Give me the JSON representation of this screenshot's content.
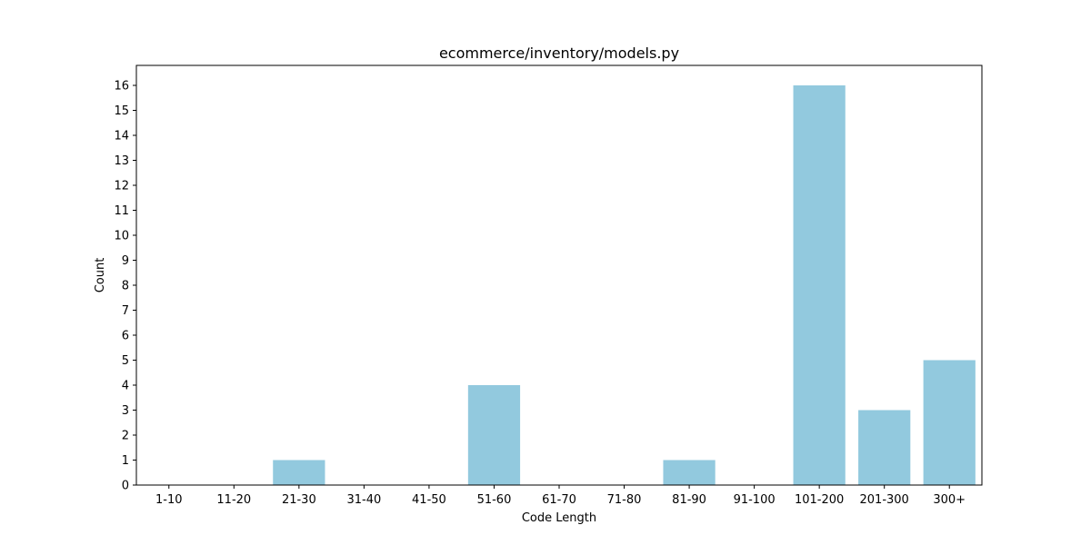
{
  "chart_data": {
    "type": "bar",
    "title": "ecommerce/inventory/models.py",
    "xlabel": "Code Length",
    "ylabel": "Count",
    "categories": [
      "1-10",
      "11-20",
      "21-30",
      "31-40",
      "41-50",
      "51-60",
      "61-70",
      "71-80",
      "81-90",
      "91-100",
      "101-200",
      "201-300",
      "300+"
    ],
    "values": [
      0,
      0,
      1,
      0,
      0,
      4,
      0,
      0,
      1,
      0,
      16,
      3,
      5
    ],
    "yticks": [
      0,
      1,
      2,
      3,
      4,
      5,
      6,
      7,
      8,
      9,
      10,
      11,
      12,
      13,
      14,
      15,
      16
    ],
    "ylim": [
      0,
      16.8
    ],
    "grid": false,
    "bar_color": "#92c9de"
  }
}
